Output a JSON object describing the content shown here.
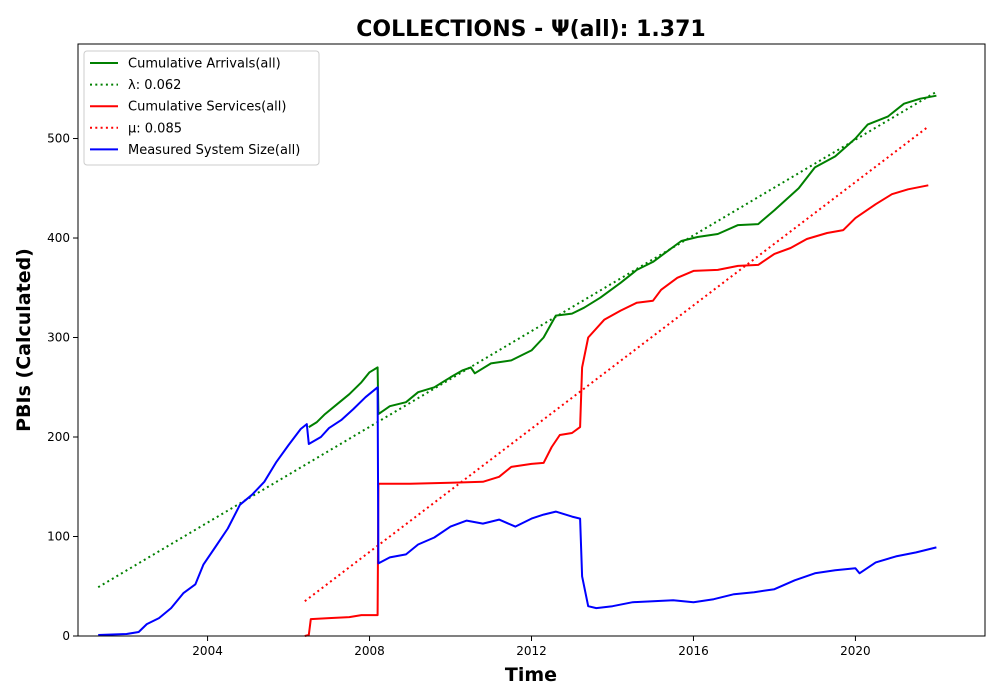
{
  "chart_data": {
    "type": "line",
    "title": "COLLECTIONS -  Ψ(all): 1.371",
    "xlabel": "Time",
    "ylabel": "PBIs (Calculated)",
    "xlim": [
      2000.8,
      2023.2
    ],
    "ylim": [
      0,
      595
    ],
    "x_ticks": [
      2004,
      2008,
      2012,
      2016,
      2020
    ],
    "x_tick_labels": [
      "2004",
      "2008",
      "2012",
      "2016",
      "2020"
    ],
    "y_ticks": [
      0,
      100,
      200,
      300,
      400,
      500
    ],
    "y_tick_labels": [
      "0",
      "100",
      "200",
      "300",
      "400",
      "500"
    ],
    "grid": false,
    "legend_position": "top-left",
    "series": [
      {
        "name": "Cumulative Arrivals(all)",
        "color": "#008000",
        "style": "solid",
        "points": [
          [
            2006.5,
            210
          ],
          [
            2006.7,
            215
          ],
          [
            2006.9,
            223
          ],
          [
            2007.2,
            233
          ],
          [
            2007.5,
            243
          ],
          [
            2007.8,
            255
          ],
          [
            2008.0,
            265
          ],
          [
            2008.2,
            270
          ],
          [
            2008.22,
            223
          ],
          [
            2008.5,
            231
          ],
          [
            2008.9,
            235
          ],
          [
            2009.2,
            245
          ],
          [
            2009.6,
            250
          ],
          [
            2010.0,
            260
          ],
          [
            2010.3,
            267
          ],
          [
            2010.5,
            270
          ],
          [
            2010.6,
            264
          ],
          [
            2011.0,
            274
          ],
          [
            2011.5,
            277
          ],
          [
            2012.0,
            287
          ],
          [
            2012.3,
            300
          ],
          [
            2012.6,
            322
          ],
          [
            2013.0,
            324
          ],
          [
            2013.3,
            330
          ],
          [
            2013.7,
            340
          ],
          [
            2014.2,
            355
          ],
          [
            2014.6,
            368
          ],
          [
            2015.0,
            376
          ],
          [
            2015.3,
            385
          ],
          [
            2015.7,
            397
          ],
          [
            2016.1,
            401
          ],
          [
            2016.6,
            404
          ],
          [
            2017.1,
            413
          ],
          [
            2017.6,
            414
          ],
          [
            2018.0,
            428
          ],
          [
            2018.6,
            450
          ],
          [
            2019.0,
            471
          ],
          [
            2019.5,
            482
          ],
          [
            2020.0,
            500
          ],
          [
            2020.3,
            514
          ],
          [
            2020.8,
            522
          ],
          [
            2021.2,
            535
          ],
          [
            2021.6,
            540
          ],
          [
            2022.0,
            543
          ]
        ]
      },
      {
        "name": "λ: 0.062",
        "color": "#008000",
        "style": "dotted",
        "points": [
          [
            2001.3,
            49
          ],
          [
            2022.0,
            547
          ]
        ]
      },
      {
        "name": "Cumulative Services(all)",
        "color": "#ff0000",
        "style": "solid",
        "points": [
          [
            2006.4,
            0
          ],
          [
            2006.5,
            1
          ],
          [
            2006.55,
            17
          ],
          [
            2007.0,
            18
          ],
          [
            2007.5,
            19
          ],
          [
            2007.8,
            21
          ],
          [
            2008.2,
            21
          ],
          [
            2008.22,
            153
          ],
          [
            2009.0,
            153
          ],
          [
            2010.0,
            154
          ],
          [
            2010.8,
            155
          ],
          [
            2011.2,
            160
          ],
          [
            2011.5,
            170
          ],
          [
            2012.0,
            173
          ],
          [
            2012.3,
            174
          ],
          [
            2012.5,
            190
          ],
          [
            2012.7,
            202
          ],
          [
            2013.0,
            204
          ],
          [
            2013.2,
            210
          ],
          [
            2013.25,
            270
          ],
          [
            2013.4,
            300
          ],
          [
            2013.8,
            318
          ],
          [
            2014.2,
            327
          ],
          [
            2014.6,
            335
          ],
          [
            2015.0,
            337
          ],
          [
            2015.2,
            348
          ],
          [
            2015.6,
            360
          ],
          [
            2016.0,
            367
          ],
          [
            2016.6,
            368
          ],
          [
            2017.1,
            372
          ],
          [
            2017.6,
            373
          ],
          [
            2018.0,
            384
          ],
          [
            2018.4,
            390
          ],
          [
            2018.8,
            399
          ],
          [
            2019.3,
            405
          ],
          [
            2019.7,
            408
          ],
          [
            2020.0,
            420
          ],
          [
            2020.5,
            434
          ],
          [
            2020.9,
            444
          ],
          [
            2021.3,
            449
          ],
          [
            2021.8,
            453
          ]
        ]
      },
      {
        "name": "μ: 0.085",
        "color": "#ff0000",
        "style": "dotted",
        "points": [
          [
            2006.4,
            35
          ],
          [
            2021.8,
            512
          ]
        ]
      },
      {
        "name": "Measured System Size(all)",
        "color": "#0000ff",
        "style": "solid",
        "points": [
          [
            2001.3,
            1
          ],
          [
            2002.0,
            2
          ],
          [
            2002.3,
            4
          ],
          [
            2002.5,
            12
          ],
          [
            2002.8,
            18
          ],
          [
            2003.1,
            28
          ],
          [
            2003.4,
            43
          ],
          [
            2003.7,
            52
          ],
          [
            2003.9,
            72
          ],
          [
            2004.2,
            90
          ],
          [
            2004.5,
            108
          ],
          [
            2004.8,
            132
          ],
          [
            2005.1,
            142
          ],
          [
            2005.4,
            155
          ],
          [
            2005.7,
            175
          ],
          [
            2006.0,
            192
          ],
          [
            2006.3,
            208
          ],
          [
            2006.45,
            213
          ],
          [
            2006.5,
            193
          ],
          [
            2006.8,
            200
          ],
          [
            2007.0,
            209
          ],
          [
            2007.3,
            217
          ],
          [
            2007.6,
            228
          ],
          [
            2007.9,
            240
          ],
          [
            2008.2,
            250
          ],
          [
            2008.22,
            73
          ],
          [
            2008.5,
            79
          ],
          [
            2008.9,
            82
          ],
          [
            2009.2,
            92
          ],
          [
            2009.6,
            99
          ],
          [
            2010.0,
            110
          ],
          [
            2010.4,
            116
          ],
          [
            2010.8,
            113
          ],
          [
            2011.2,
            117
          ],
          [
            2011.6,
            110
          ],
          [
            2012.0,
            118
          ],
          [
            2012.3,
            122
          ],
          [
            2012.6,
            125
          ],
          [
            2013.0,
            120
          ],
          [
            2013.2,
            118
          ],
          [
            2013.25,
            60
          ],
          [
            2013.4,
            30
          ],
          [
            2013.6,
            28
          ],
          [
            2014.0,
            30
          ],
          [
            2014.5,
            34
          ],
          [
            2015.0,
            35
          ],
          [
            2015.5,
            36
          ],
          [
            2016.0,
            34
          ],
          [
            2016.5,
            37
          ],
          [
            2017.0,
            42
          ],
          [
            2017.5,
            44
          ],
          [
            2018.0,
            47
          ],
          [
            2018.5,
            56
          ],
          [
            2019.0,
            63
          ],
          [
            2019.5,
            66
          ],
          [
            2020.0,
            68
          ],
          [
            2020.1,
            63
          ],
          [
            2020.5,
            74
          ],
          [
            2021.0,
            80
          ],
          [
            2021.5,
            84
          ],
          [
            2022.0,
            89
          ]
        ]
      }
    ]
  }
}
